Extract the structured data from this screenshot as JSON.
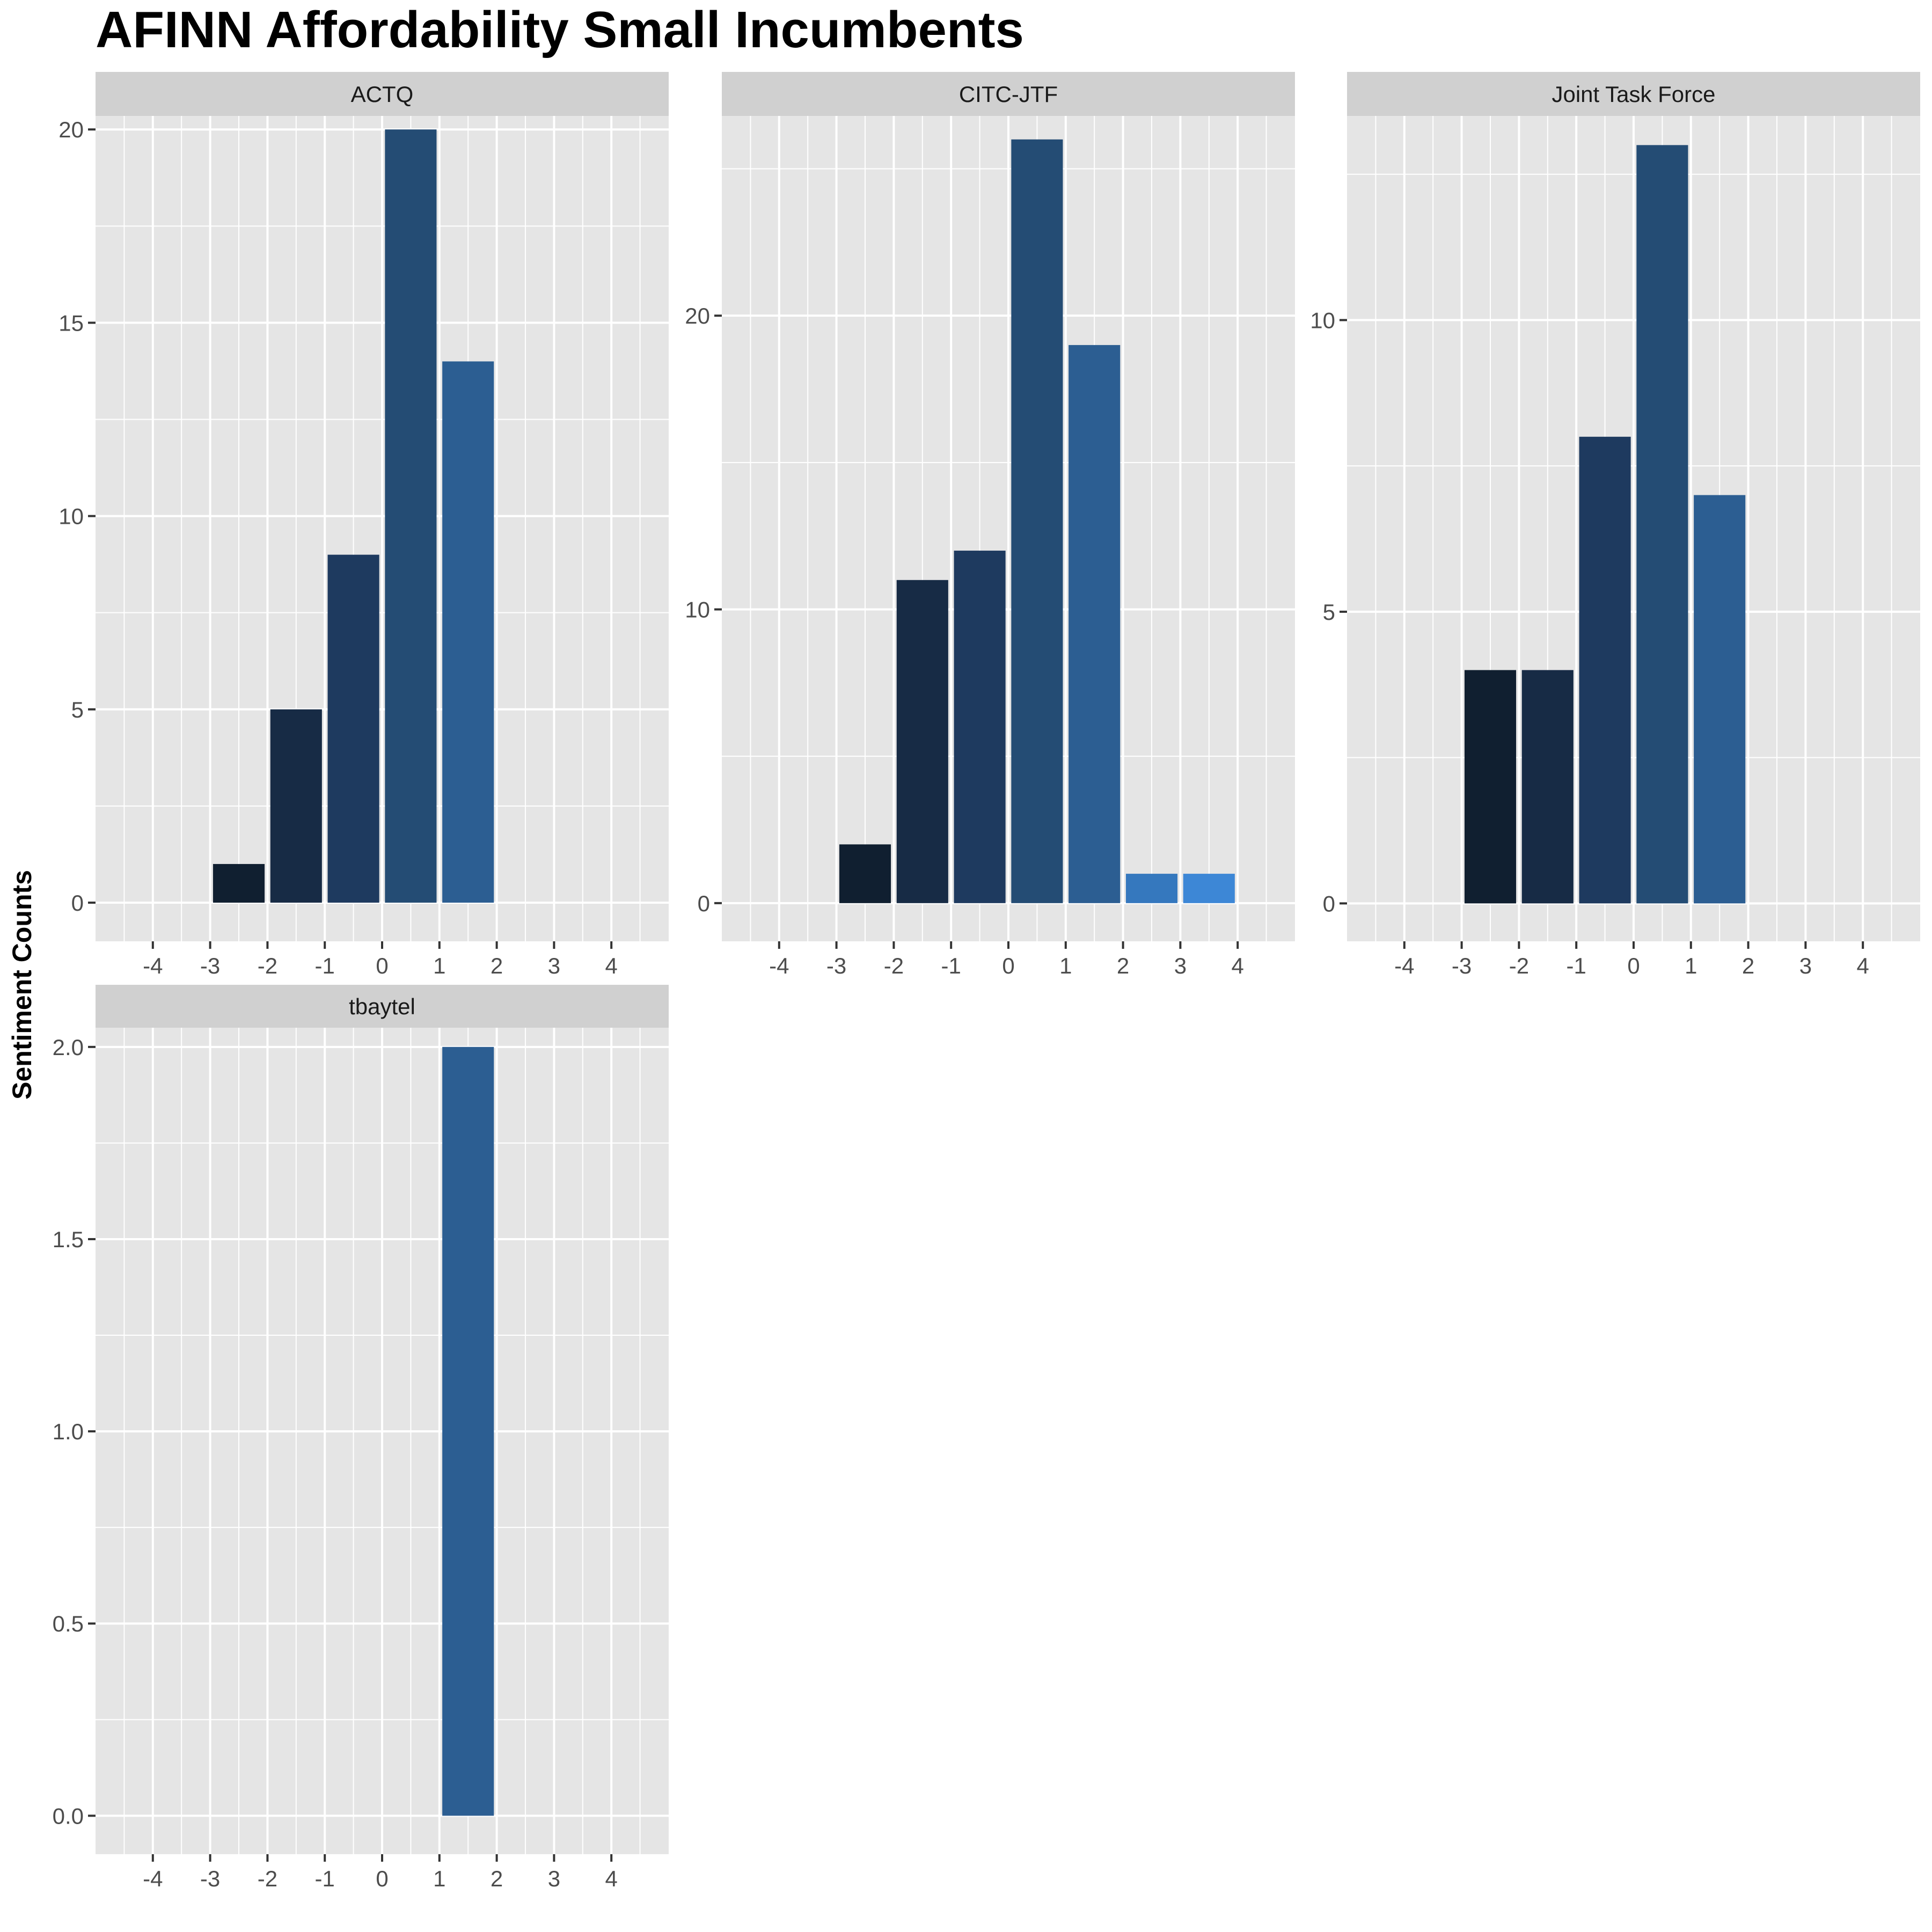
{
  "chart_data": {
    "type": "bar",
    "title": "AFINN Affordability Small Incumbents",
    "xlabel": "",
    "ylabel": "Sentiment Counts",
    "x_ticks": [
      "-4",
      "-3",
      "-2",
      "-1",
      "0",
      "1",
      "2",
      "3",
      "4"
    ],
    "x_range": [
      -5,
      5
    ],
    "grid": true,
    "legend": "none",
    "panel_background": "#e5e5e5",
    "strip_background": "#d0d0d0",
    "gridline_color": "#ffffff",
    "bar_colors": {
      "-3": "#101f30",
      "-2": "#172b45",
      "-1": "#1e3a5f",
      "0": "#244c74",
      "1": "#2c5e92",
      "2": "#3578be",
      "3": "#3d87d6"
    },
    "panels": [
      {
        "name": "ACTQ",
        "ylim": [
          -1,
          20.35
        ],
        "y_ticks": [
          "0",
          "5",
          "10",
          "15",
          "20"
        ],
        "bars": [
          {
            "x": -2.5,
            "value": 1,
            "level": "-3"
          },
          {
            "x": -1.5,
            "value": 5,
            "level": "-2"
          },
          {
            "x": -0.5,
            "value": 9,
            "level": "-1"
          },
          {
            "x": 0.5,
            "value": 20,
            "level": "0"
          },
          {
            "x": 1.5,
            "value": 14,
            "level": "1"
          }
        ]
      },
      {
        "name": "CITC-JTF",
        "ylim": [
          -1.3,
          26.8
        ],
        "y_ticks": [
          "0",
          "10",
          "20"
        ],
        "bars": [
          {
            "x": -2.5,
            "value": 2,
            "level": "-3"
          },
          {
            "x": -1.5,
            "value": 11,
            "level": "-2"
          },
          {
            "x": -0.5,
            "value": 12,
            "level": "-1"
          },
          {
            "x": 0.5,
            "value": 26,
            "level": "0"
          },
          {
            "x": 1.5,
            "value": 19,
            "level": "1"
          },
          {
            "x": 2.5,
            "value": 1,
            "level": "2"
          },
          {
            "x": 3.5,
            "value": 1,
            "level": "3"
          }
        ]
      },
      {
        "name": "Joint Task Force",
        "ylim": [
          -0.65,
          13.5
        ],
        "y_ticks": [
          "0",
          "5",
          "10"
        ],
        "bars": [
          {
            "x": -2.5,
            "value": 4,
            "level": "-3"
          },
          {
            "x": -1.5,
            "value": 4,
            "level": "-2"
          },
          {
            "x": -0.5,
            "value": 8,
            "level": "-1"
          },
          {
            "x": 0.5,
            "value": 13,
            "level": "0"
          },
          {
            "x": 1.5,
            "value": 7,
            "level": "1"
          }
        ]
      },
      {
        "name": "tbaytel",
        "ylim": [
          -0.1,
          2.05
        ],
        "y_ticks": [
          "0.0",
          "0.5",
          "1.0",
          "1.5",
          "2.0"
        ],
        "bars": [
          {
            "x": 1.5,
            "value": 2,
            "level": "1"
          }
        ]
      }
    ]
  }
}
